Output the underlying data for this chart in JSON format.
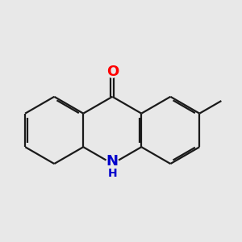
{
  "bg_color": "#e8e8e8",
  "bond_color": "#1a1a1a",
  "bond_width": 1.6,
  "dbo": 0.055,
  "atom_colors": {
    "O": "#ff0000",
    "N": "#0000cc"
  },
  "font_size_atom": 13,
  "font_size_H": 10,
  "figsize": [
    3.0,
    3.0
  ],
  "dpi": 100
}
